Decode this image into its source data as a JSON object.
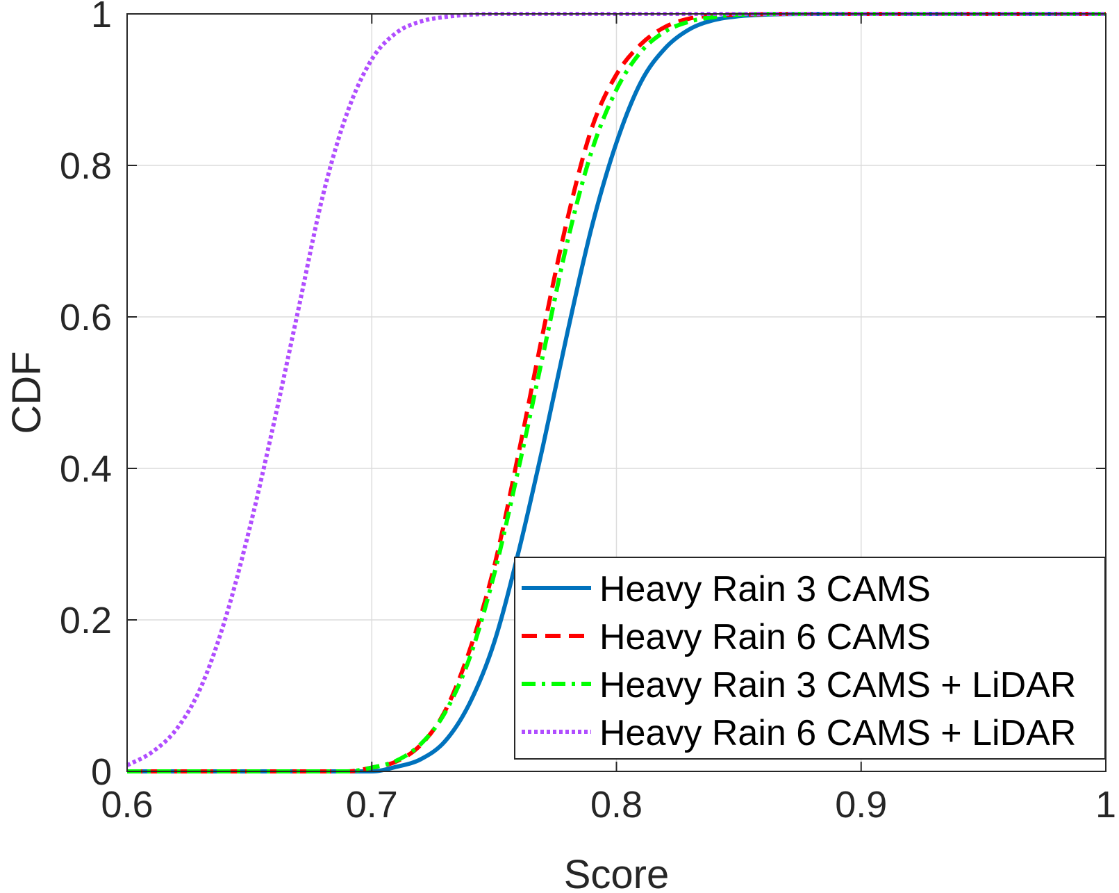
{
  "chart_data": {
    "type": "line",
    "title": "",
    "xlabel": "Score",
    "ylabel": "CDF",
    "xlim": [
      0.6,
      1.0
    ],
    "ylim": [
      0,
      1
    ],
    "xticks": [
      0.6,
      0.7,
      0.8,
      0.9,
      1.0
    ],
    "xtick_labels": [
      "0.6",
      "0.7",
      "0.8",
      "0.9",
      "1"
    ],
    "yticks": [
      0,
      0.2,
      0.4,
      0.6,
      0.8,
      1.0
    ],
    "ytick_labels": [
      "0",
      "0.2",
      "0.4",
      "0.6",
      "0.8",
      "1"
    ],
    "grid": true,
    "legend_position": "bottom-right",
    "series": [
      {
        "name": "Heavy Rain 3 CAMS",
        "color": "#0072BD",
        "style": "solid",
        "x": [
          0.6,
          0.7,
          0.71,
          0.72,
          0.73,
          0.74,
          0.75,
          0.76,
          0.77,
          0.78,
          0.79,
          0.8,
          0.81,
          0.82,
          0.83,
          0.84,
          0.85,
          0.86,
          0.88,
          0.9,
          1.0
        ],
        "y": [
          0.0,
          0.0,
          0.006,
          0.016,
          0.04,
          0.09,
          0.17,
          0.29,
          0.43,
          0.58,
          0.72,
          0.83,
          0.91,
          0.955,
          0.98,
          0.992,
          0.997,
          0.999,
          1.0,
          1.0,
          1.0
        ]
      },
      {
        "name": "Heavy Rain 6 CAMS",
        "color": "#FF0000",
        "style": "dashed",
        "x": [
          0.6,
          0.69,
          0.7,
          0.71,
          0.72,
          0.73,
          0.74,
          0.75,
          0.76,
          0.77,
          0.78,
          0.79,
          0.8,
          0.81,
          0.82,
          0.83,
          0.84,
          0.85,
          0.87,
          0.9,
          1.0
        ],
        "y": [
          0.0,
          0.0,
          0.005,
          0.013,
          0.035,
          0.08,
          0.16,
          0.27,
          0.42,
          0.58,
          0.73,
          0.85,
          0.92,
          0.96,
          0.983,
          0.994,
          0.998,
          0.999,
          1.0,
          1.0,
          1.0
        ]
      },
      {
        "name": "Heavy Rain 3 CAMS + LiDAR",
        "color": "#00FF00",
        "style": "dashdot",
        "x": [
          0.6,
          0.69,
          0.7,
          0.71,
          0.72,
          0.73,
          0.74,
          0.75,
          0.76,
          0.77,
          0.78,
          0.79,
          0.8,
          0.81,
          0.82,
          0.83,
          0.84,
          0.85,
          0.87,
          0.9,
          1.0
        ],
        "y": [
          0.0,
          0.0,
          0.005,
          0.014,
          0.036,
          0.078,
          0.15,
          0.26,
          0.4,
          0.55,
          0.7,
          0.82,
          0.9,
          0.95,
          0.977,
          0.99,
          0.996,
          0.999,
          1.0,
          1.0,
          1.0
        ]
      },
      {
        "name": "Heavy Rain 6 CAMS + LiDAR",
        "color": "#B04DFF",
        "style": "dotted",
        "x": [
          0.6,
          0.61,
          0.62,
          0.63,
          0.64,
          0.65,
          0.66,
          0.67,
          0.68,
          0.69,
          0.7,
          0.71,
          0.72,
          0.73,
          0.74,
          0.75,
          0.76,
          0.78,
          0.8,
          1.0
        ],
        "y": [
          0.008,
          0.025,
          0.055,
          0.11,
          0.2,
          0.32,
          0.46,
          0.61,
          0.76,
          0.87,
          0.94,
          0.975,
          0.99,
          0.996,
          0.999,
          1.0,
          1.0,
          1.0,
          1.0,
          1.0
        ]
      }
    ]
  }
}
